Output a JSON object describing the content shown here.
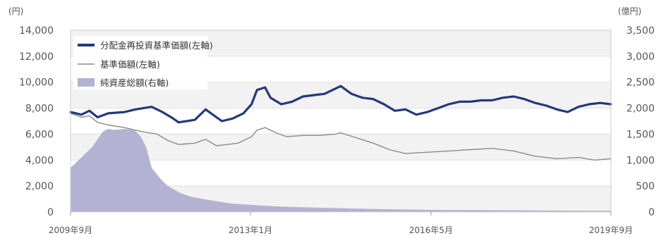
{
  "chart_data": {
    "type": "line",
    "units": {
      "left": "(円)",
      "right": "(億円)"
    },
    "y_left": {
      "min": 0,
      "max": 14000,
      "ticks": [
        "14,000",
        "12,000",
        "10,000",
        "8,000",
        "6,000",
        "4,000",
        "2,000",
        "0"
      ]
    },
    "y_right": {
      "min": 0,
      "max": 3500,
      "ticks": [
        "3,500",
        "3,000",
        "2,500",
        "2,000",
        "1,500",
        "1,000",
        "500",
        "0"
      ]
    },
    "x_labels": [
      "2009年9月",
      "2013年1月",
      "2016年5月",
      "2019年9月"
    ],
    "x_label_pos": [
      0,
      0.333,
      0.667,
      1
    ],
    "legend": [
      {
        "label": "分配金再投資基準価額(左軸)",
        "kind": "thick-line",
        "color": "#233a7a"
      },
      {
        "label": "基準価額(左軸)",
        "kind": "thin-line",
        "color": "#8a8a8a"
      },
      {
        "label": "純資産総額(右軸)",
        "kind": "area",
        "color": "#b3b2d3"
      }
    ],
    "grid": "horizontal",
    "bands": "alternating",
    "series": [
      {
        "name": "分配金再投資基準価額(左軸)",
        "axis": "left",
        "color": "#233a7a",
        "x": [
          0,
          0.02,
          0.035,
          0.05,
          0.07,
          0.1,
          0.12,
          0.15,
          0.17,
          0.19,
          0.2,
          0.23,
          0.25,
          0.27,
          0.28,
          0.3,
          0.32,
          0.335,
          0.345,
          0.36,
          0.37,
          0.39,
          0.41,
          0.43,
          0.45,
          0.47,
          0.49,
          0.5,
          0.52,
          0.54,
          0.56,
          0.58,
          0.6,
          0.62,
          0.64,
          0.66,
          0.68,
          0.7,
          0.72,
          0.74,
          0.76,
          0.78,
          0.8,
          0.82,
          0.84,
          0.86,
          0.88,
          0.9,
          0.92,
          0.94,
          0.96,
          0.98,
          1
        ],
        "values": [
          7700,
          7500,
          7800,
          7300,
          7600,
          7700,
          7900,
          8100,
          7700,
          7200,
          6900,
          7100,
          7900,
          7300,
          7000,
          7200,
          7600,
          8300,
          9400,
          9600,
          8800,
          8300,
          8500,
          8900,
          9000,
          9100,
          9500,
          9700,
          9100,
          8800,
          8700,
          8300,
          7800,
          7900,
          7500,
          7700,
          8000,
          8300,
          8500,
          8500,
          8600,
          8600,
          8800,
          8900,
          8700,
          8400,
          8200,
          7900,
          7700,
          8100,
          8300,
          8400,
          8300
        ]
      },
      {
        "name": "基準価額(左軸)",
        "axis": "left",
        "color": "#8a8a8a",
        "x": [
          0,
          0.02,
          0.035,
          0.05,
          0.07,
          0.1,
          0.13,
          0.16,
          0.18,
          0.2,
          0.23,
          0.25,
          0.27,
          0.29,
          0.31,
          0.335,
          0.345,
          0.36,
          0.38,
          0.4,
          0.43,
          0.46,
          0.49,
          0.5,
          0.53,
          0.56,
          0.59,
          0.62,
          0.66,
          0.7,
          0.74,
          0.78,
          0.82,
          0.86,
          0.9,
          0.94,
          0.97,
          1
        ],
        "values": [
          7600,
          7300,
          7400,
          6900,
          6700,
          6500,
          6200,
          6000,
          5500,
          5200,
          5300,
          5600,
          5100,
          5200,
          5300,
          5800,
          6300,
          6500,
          6100,
          5800,
          5900,
          5900,
          6000,
          6100,
          5700,
          5300,
          4800,
          4500,
          4600,
          4700,
          4800,
          4900,
          4700,
          4300,
          4100,
          4200,
          4000,
          4100
        ]
      },
      {
        "name": "純資産総額(右軸)",
        "axis": "right",
        "color": "#b3b2d3",
        "x": [
          0,
          0.01,
          0.02,
          0.03,
          0.04,
          0.05,
          0.06,
          0.07,
          0.08,
          0.09,
          0.1,
          0.11,
          0.12,
          0.13,
          0.14,
          0.145,
          0.15,
          0.16,
          0.17,
          0.18,
          0.2,
          0.22,
          0.25,
          0.28,
          0.3,
          0.33,
          0.36,
          0.4,
          0.45,
          0.5,
          0.55,
          0.6,
          0.67,
          0.75,
          0.85,
          0.95,
          1
        ],
        "values": [
          850,
          950,
          1050,
          1150,
          1250,
          1400,
          1550,
          1600,
          1580,
          1590,
          1600,
          1590,
          1560,
          1450,
          1250,
          1050,
          850,
          720,
          600,
          500,
          380,
          300,
          240,
          190,
          160,
          140,
          120,
          100,
          85,
          70,
          60,
          50,
          40,
          35,
          30,
          25,
          25
        ]
      }
    ]
  }
}
